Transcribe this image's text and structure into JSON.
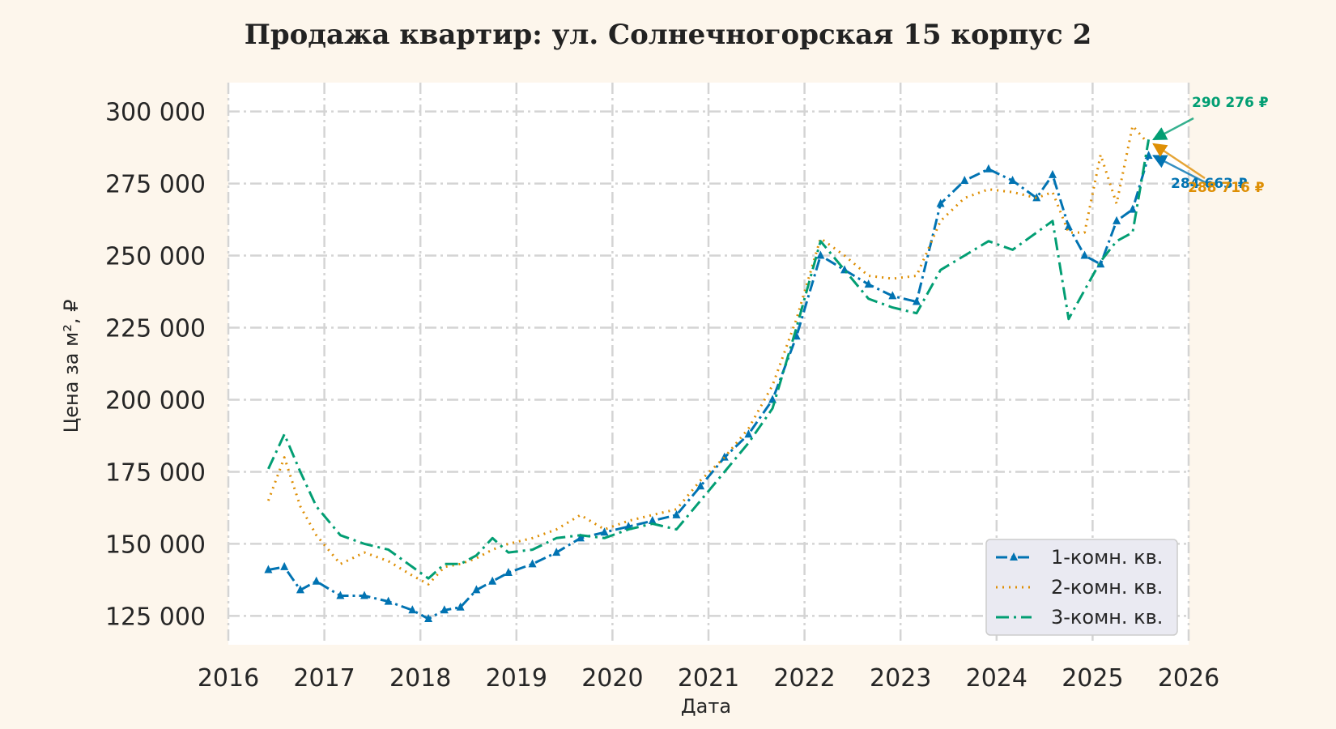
{
  "chart_data": {
    "type": "line",
    "title": "Продажа квартир: ул. Солнечногорская 15 корпус 2",
    "xlabel": "Дата",
    "ylabel": "Цена за м², ₽",
    "xlim": [
      "2016-01-01",
      "2026-01-01"
    ],
    "ylim": [
      115000,
      310000
    ],
    "x_ticks": [
      "2016",
      "2017",
      "2018",
      "2019",
      "2020",
      "2021",
      "2022",
      "2023",
      "2024",
      "2025",
      "2026"
    ],
    "y_ticks": [
      {
        "value": 125000,
        "label": "125 000"
      },
      {
        "value": 150000,
        "label": "150 000"
      },
      {
        "value": 175000,
        "label": "175 000"
      },
      {
        "value": 200000,
        "label": "200 000"
      },
      {
        "value": 225000,
        "label": "225 000"
      },
      {
        "value": 250000,
        "label": "250 000"
      },
      {
        "value": 275000,
        "label": "275 000"
      },
      {
        "value": 300000,
        "label": "300 000"
      }
    ],
    "grid": true,
    "legend_position": "bottom-right",
    "series": [
      {
        "name": "1-комн. кв.",
        "color": "#0173b2",
        "style": "dash-dot-triangle",
        "x": [
          "2016-06",
          "2016-08",
          "2016-10",
          "2016-12",
          "2017-03",
          "2017-06",
          "2017-09",
          "2017-12",
          "2018-02",
          "2018-04",
          "2018-06",
          "2018-08",
          "2018-10",
          "2018-12",
          "2019-03",
          "2019-06",
          "2019-09",
          "2019-12",
          "2020-03",
          "2020-06",
          "2020-09",
          "2020-12",
          "2021-03",
          "2021-06",
          "2021-09",
          "2021-12",
          "2022-03",
          "2022-06",
          "2022-09",
          "2022-12",
          "2023-03",
          "2023-06",
          "2023-09",
          "2023-12",
          "2024-03",
          "2024-06",
          "2024-08",
          "2024-10",
          "2024-12",
          "2025-02",
          "2025-04",
          "2025-06",
          "2025-08"
        ],
        "values": [
          141000,
          142000,
          134000,
          137000,
          132000,
          132000,
          130000,
          127000,
          124000,
          127000,
          128000,
          134000,
          137000,
          140000,
          143000,
          147000,
          152000,
          154000,
          156000,
          158000,
          160000,
          170000,
          180000,
          188000,
          200000,
          222000,
          250000,
          245000,
          240000,
          236000,
          234000,
          268000,
          276000,
          280000,
          276000,
          270000,
          278000,
          260000,
          250000,
          247000,
          262000,
          266000,
          284663
        ]
      },
      {
        "name": "2-комн. кв.",
        "color": "#de8f05",
        "style": "dotted",
        "x": [
          "2016-06",
          "2016-08",
          "2016-10",
          "2016-12",
          "2017-03",
          "2017-06",
          "2017-09",
          "2017-12",
          "2018-02",
          "2018-04",
          "2018-06",
          "2018-08",
          "2018-10",
          "2018-12",
          "2019-03",
          "2019-06",
          "2019-09",
          "2019-12",
          "2020-03",
          "2020-06",
          "2020-09",
          "2020-12",
          "2021-03",
          "2021-06",
          "2021-09",
          "2021-12",
          "2022-03",
          "2022-06",
          "2022-09",
          "2022-12",
          "2023-03",
          "2023-06",
          "2023-09",
          "2023-12",
          "2024-03",
          "2024-06",
          "2024-08",
          "2024-10",
          "2024-12",
          "2025-02",
          "2025-04",
          "2025-06",
          "2025-08"
        ],
        "values": [
          165000,
          180000,
          163000,
          153000,
          143000,
          147000,
          144000,
          139000,
          136000,
          142000,
          143000,
          145000,
          148000,
          150000,
          152000,
          155000,
          160000,
          155000,
          158000,
          160000,
          162000,
          172000,
          180000,
          190000,
          205000,
          228000,
          256000,
          250000,
          243000,
          242000,
          243000,
          262000,
          270000,
          273000,
          272000,
          270000,
          272000,
          258000,
          258000,
          285000,
          268000,
          295000,
          288716
        ]
      },
      {
        "name": "3-комн. кв.",
        "color": "#029e73",
        "style": "dash-dot",
        "x": [
          "2016-06",
          "2016-08",
          "2016-10",
          "2016-12",
          "2017-03",
          "2017-06",
          "2017-09",
          "2017-12",
          "2018-02",
          "2018-04",
          "2018-06",
          "2018-08",
          "2018-10",
          "2018-12",
          "2019-03",
          "2019-06",
          "2019-09",
          "2019-12",
          "2020-03",
          "2020-06",
          "2020-09",
          "2020-12",
          "2021-03",
          "2021-06",
          "2021-09",
          "2021-12",
          "2022-03",
          "2022-06",
          "2022-09",
          "2022-12",
          "2023-03",
          "2023-06",
          "2023-09",
          "2023-12",
          "2024-03",
          "2024-06",
          "2024-08",
          "2024-10",
          "2024-12",
          "2025-02",
          "2025-04",
          "2025-06",
          "2025-08"
        ],
        "values": [
          176000,
          188000,
          175000,
          163000,
          153000,
          150000,
          148000,
          142000,
          138000,
          143000,
          143000,
          146000,
          152000,
          147000,
          148000,
          152000,
          153000,
          152000,
          155000,
          157000,
          155000,
          165000,
          175000,
          185000,
          197000,
          225000,
          255000,
          245000,
          235000,
          232000,
          230000,
          245000,
          250000,
          255000,
          252000,
          258000,
          262000,
          228000,
          238000,
          248000,
          255000,
          258000,
          290276
        ]
      }
    ],
    "annotations": [
      {
        "series": "3-комн. кв.",
        "text": "290 276 ₽",
        "x": "2025-08",
        "value": 290276
      },
      {
        "series": "1-комн. кв.",
        "text": "284 663 ₽",
        "x": "2025-08",
        "value": 284663
      },
      {
        "series": "2-комн. кв.",
        "text": "288 716 ₽",
        "x": "2025-08",
        "value": 288716
      }
    ]
  }
}
